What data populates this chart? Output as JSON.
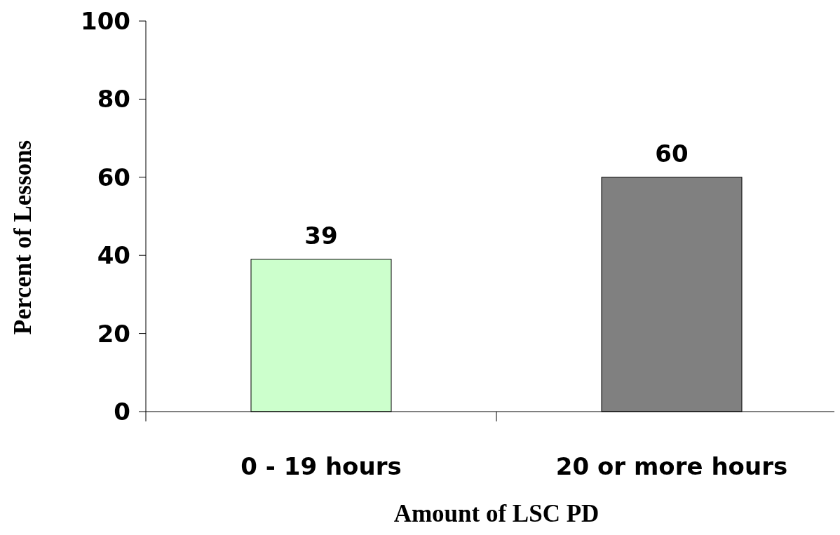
{
  "chart_data": {
    "type": "bar",
    "xlabel": "Amount of LSC PD",
    "ylabel": "Percent of Lessons",
    "categories": [
      "0 - 19 hours",
      "20 or more hours"
    ],
    "values": [
      39,
      60
    ],
    "colors": [
      "#ccffcc",
      "#808080"
    ],
    "ylim": [
      0,
      100
    ],
    "yticks": [
      0,
      20,
      40,
      60,
      80,
      100
    ],
    "data_labels": true,
    "grid": false
  }
}
